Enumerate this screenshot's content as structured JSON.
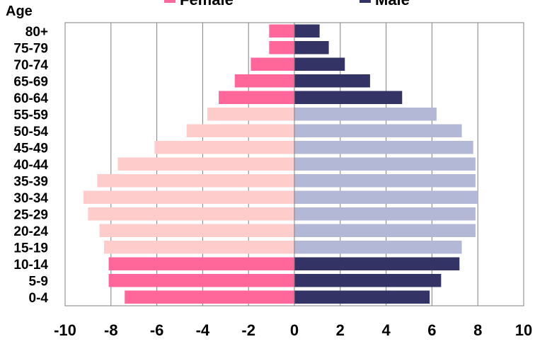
{
  "chart_data": {
    "type": "bar",
    "orientation": "horizontal",
    "stacked": "diverging",
    "ylabel": "Age",
    "categories": [
      "80+",
      "75-79",
      "70-74",
      "65-69",
      "60-64",
      "55-59",
      "50-54",
      "45-49",
      "40-44",
      "35-39",
      "30-34",
      "25-29",
      "20-24",
      "15-19",
      "10-14",
      "5-9",
      "0-4"
    ],
    "series": [
      {
        "name": "Female",
        "values": [
          -1.1,
          -1.1,
          -1.9,
          -2.6,
          -3.3,
          -3.8,
          -4.7,
          -6.1,
          -7.7,
          -8.6,
          -9.2,
          -9.0,
          -8.5,
          -8.3,
          -8.1,
          -8.1,
          -7.4
        ],
        "color": "#ff6699",
        "highlight_color": "#ffcccc"
      },
      {
        "name": "Male",
        "values": [
          1.1,
          1.5,
          2.2,
          3.3,
          4.7,
          6.2,
          7.3,
          7.8,
          7.9,
          7.9,
          8.0,
          7.9,
          7.9,
          7.3,
          7.2,
          6.4,
          5.9
        ],
        "color": "#333366",
        "highlight_color": "#b3b8d6"
      }
    ],
    "highlighted_categories": [
      "55-59",
      "50-54",
      "45-49",
      "40-44",
      "35-39",
      "30-34",
      "25-29",
      "20-24",
      "15-19"
    ],
    "xlim": [
      -10,
      10
    ],
    "xticks": [
      -10,
      -8,
      -6,
      -4,
      -2,
      0,
      2,
      4,
      6,
      8,
      10
    ],
    "grid": true,
    "legend_position": "top"
  }
}
